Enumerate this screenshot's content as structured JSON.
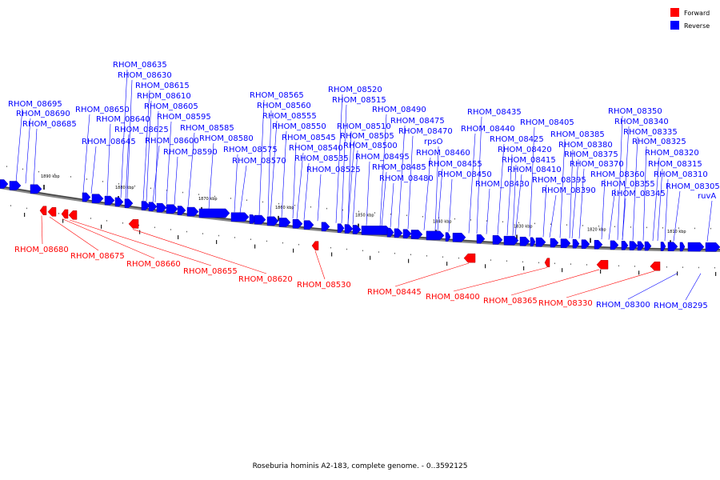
{
  "legend": {
    "forward_label": "Forward",
    "reverse_label": "Reverse",
    "forward_color": "#ff0000",
    "reverse_color": "#0000ff"
  },
  "caption": "Roseburia hominis A2-183, complete genome. - 0..3592125",
  "scale_ticks": [
    "1890 kbp",
    "1880 kbp",
    "1870 kbp",
    "1860 kbp",
    "1850 kbp",
    "1840 kbp",
    "1830 kbp",
    "1820 kbp",
    "1810 kbp"
  ],
  "reverse_labels": [
    "RHOM_08695",
    "RHOM_08690",
    "RHOM_08685",
    "RHOM_08650",
    "RHOM_08645",
    "RHOM_08640",
    "RHOM_08635",
    "RHOM_08630",
    "RHOM_08625",
    "RHOM_08615",
    "RHOM_08610",
    "RHOM_08605",
    "RHOM_08600",
    "RHOM_08595",
    "RHOM_08590",
    "RHOM_08585",
    "RHOM_08580",
    "RHOM_08575",
    "RHOM_08570",
    "RHOM_08565",
    "RHOM_08560",
    "RHOM_08555",
    "RHOM_08550",
    "RHOM_08545",
    "RHOM_08540",
    "RHOM_08535",
    "RHOM_08525",
    "RHOM_08520",
    "RHOM_08515",
    "RHOM_08510",
    "RHOM_08505",
    "RHOM_08500",
    "RHOM_08495",
    "RHOM_08490",
    "RHOM_08485",
    "RHOM_08480",
    "RHOM_08475",
    "RHOM_08470",
    "rpsO",
    "RHOM_08460",
    "RHOM_08455",
    "RHOM_08450",
    "RHOM_08440",
    "RHOM_08435",
    "RHOM_08430",
    "RHOM_08425",
    "RHOM_08420",
    "RHOM_08415",
    "RHOM_08410",
    "RHOM_08405",
    "RHOM_08395",
    "RHOM_08390",
    "RHOM_08385",
    "RHOM_08380",
    "RHOM_08375",
    "RHOM_08370",
    "RHOM_08360",
    "RHOM_08355",
    "RHOM_08350",
    "RHOM_08345",
    "RHOM_08340",
    "RHOM_08335",
    "RHOM_08325",
    "RHOM_08320",
    "RHOM_08315",
    "RHOM_08310",
    "RHOM_08305",
    "ruvA",
    "RHOM_08300",
    "RHOM_08295"
  ],
  "forward_labels": [
    "RHOM_08680",
    "RHOM_08675",
    "RHOM_08660",
    "RHOM_08655",
    "RHOM_08620",
    "RHOM_08530",
    "RHOM_08445",
    "RHOM_08400",
    "RHOM_08365",
    "RHOM_08330"
  ]
}
